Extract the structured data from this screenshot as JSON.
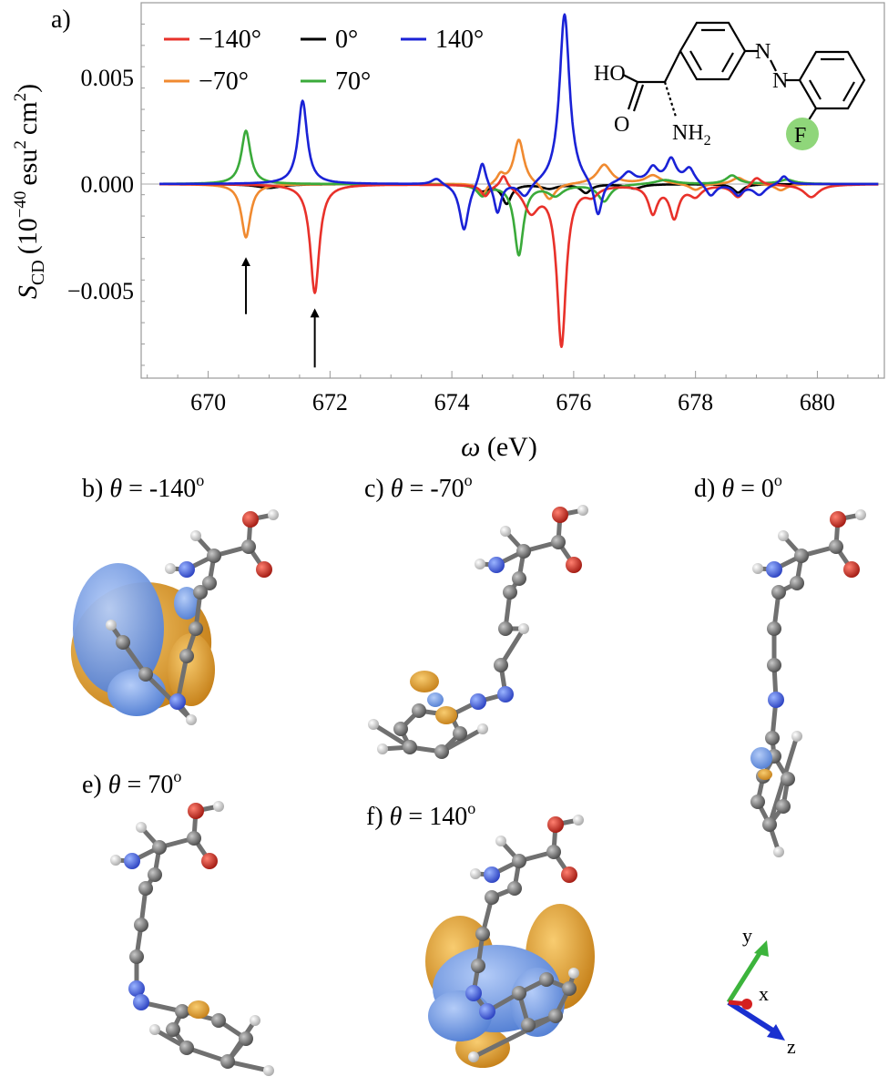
{
  "chart_data": {
    "type": "line",
    "panel_label": "a)",
    "xlabel": "ω (eV)",
    "ylabel_main": "S",
    "ylabel_sub": "CD",
    "ylabel_units": "(10",
    "ylabel_exp": "−40",
    "ylabel_units2": "esu",
    "ylabel_exp2": "2",
    "ylabel_units3": "cm",
    "ylabel_exp3": "2",
    "ylabel_close": ")",
    "xlim": [
      668.9,
      681.1
    ],
    "ylim": [
      -0.0091,
      0.0085
    ],
    "x_ticks": [
      670,
      672,
      674,
      676,
      678,
      680
    ],
    "x_tick_labels": [
      "670",
      "672",
      "674",
      "676",
      "678",
      "680"
    ],
    "y_ticks": [
      0.005,
      0.0,
      -0.005
    ],
    "y_tick_labels": [
      "0.005",
      "0.000",
      "−0.005"
    ],
    "legend_position": "top-left",
    "series": [
      {
        "name": "−140°",
        "color": "#e8312a",
        "peaks": [
          [
            671.75,
            -0.0051,
            0.09
          ],
          [
            674.55,
            -0.0005,
            0.08
          ],
          [
            674.85,
            0.0006,
            0.07
          ],
          [
            675.3,
            -0.0012,
            0.15
          ],
          [
            675.8,
            -0.0075,
            0.09
          ],
          [
            676.3,
            -0.0004,
            0.12
          ],
          [
            677.3,
            -0.0013,
            0.09
          ],
          [
            677.65,
            -0.0015,
            0.09
          ],
          [
            678.0,
            -0.0005,
            0.12
          ],
          [
            678.7,
            -0.0006,
            0.12
          ],
          [
            679.0,
            0.0004,
            0.1
          ],
          [
            679.9,
            -0.0006,
            0.15
          ]
        ]
      },
      {
        "name": "−70°",
        "color": "#f08a30",
        "peaks": [
          [
            670.62,
            -0.0025,
            0.09
          ],
          [
            674.5,
            -0.0006,
            0.08
          ],
          [
            674.8,
            0.0004,
            0.07
          ],
          [
            675.1,
            0.0021,
            0.1
          ],
          [
            675.6,
            -0.0008,
            0.12
          ],
          [
            676.5,
            0.0009,
            0.14
          ],
          [
            677.3,
            0.0004,
            0.15
          ],
          [
            678.0,
            -0.0003,
            0.12
          ],
          [
            678.7,
            0.0003,
            0.12
          ],
          [
            679.4,
            -0.0003,
            0.12
          ]
        ]
      },
      {
        "name": "0°",
        "color": "#000000",
        "peaks": [
          [
            671.0,
            -0.00018,
            0.25
          ],
          [
            674.5,
            -0.0003,
            0.12
          ],
          [
            674.9,
            -0.0009,
            0.09
          ],
          [
            675.6,
            -0.0002,
            0.15
          ],
          [
            676.2,
            -0.0004,
            0.1
          ],
          [
            677.0,
            -0.0002,
            0.15
          ],
          [
            678.7,
            -0.0004,
            0.1
          ]
        ]
      },
      {
        "name": "70°",
        "color": "#3aaa3a",
        "peaks": [
          [
            670.62,
            0.0025,
            0.09
          ],
          [
            674.5,
            -0.0005,
            0.1
          ],
          [
            675.1,
            -0.0033,
            0.09
          ],
          [
            675.7,
            -0.0005,
            0.15
          ],
          [
            676.5,
            -0.0008,
            0.12
          ],
          [
            677.5,
            0.0002,
            0.2
          ],
          [
            678.6,
            0.0004,
            0.12
          ],
          [
            679.5,
            0.0002,
            0.15
          ]
        ]
      },
      {
        "name": "140°",
        "color": "#1a22d6",
        "peaks": [
          [
            671.55,
            0.0039,
            0.09
          ],
          [
            673.75,
            0.0003,
            0.1
          ],
          [
            674.2,
            -0.0022,
            0.09
          ],
          [
            674.5,
            0.0012,
            0.07
          ],
          [
            674.75,
            -0.0014,
            0.07
          ],
          [
            675.2,
            -0.0007,
            0.12
          ],
          [
            675.85,
            0.008,
            0.1
          ],
          [
            676.4,
            -0.0017,
            0.08
          ],
          [
            676.9,
            0.0005,
            0.12
          ],
          [
            677.3,
            0.0007,
            0.1
          ],
          [
            677.6,
            0.0011,
            0.1
          ],
          [
            677.9,
            0.0007,
            0.1
          ],
          [
            678.25,
            -0.0006,
            0.1
          ],
          [
            678.7,
            -0.0005,
            0.1
          ],
          [
            679.05,
            -0.0005,
            0.12
          ],
          [
            679.45,
            0.0004,
            0.08
          ]
        ]
      }
    ],
    "arrows": [
      {
        "x": 670.62,
        "y_tail": -0.0061,
        "y_head": -0.0033
      },
      {
        "x": 671.75,
        "y_tail": -0.0086,
        "y_head": -0.0057
      }
    ]
  },
  "inset_molecule": {
    "atom_labels": [
      "HO",
      "O",
      "NH",
      "2",
      "N",
      "N",
      "F"
    ],
    "highlight_color": "#8fd67a"
  },
  "structure_panels": [
    {
      "letter": "b)",
      "theta": "θ",
      "eq": " = -140",
      "deg": "o"
    },
    {
      "letter": "c)",
      "theta": "θ",
      "eq": " = -70",
      "deg": "o"
    },
    {
      "letter": "d)",
      "theta": "θ",
      "eq": " = 0",
      "deg": "o"
    },
    {
      "letter": "e)",
      "theta": "θ",
      "eq": " = 70",
      "deg": "o"
    },
    {
      "letter": "f)",
      "theta": "θ",
      "eq": " = 140",
      "deg": "o"
    }
  ],
  "axes_triad": {
    "x_label": "x",
    "y_label": "y",
    "z_label": "z",
    "colors": {
      "x": "#d42020",
      "y": "#3cb43c",
      "z": "#1a30d0"
    }
  },
  "colors": {
    "carbon": "#6e6e6e",
    "hydrogen": "#f0f0f0",
    "oxygen": "#d42a20",
    "nitrogen": "#3a5ae0",
    "fluorine": "#c8e070",
    "lobe_orange": "#e8a030",
    "lobe_blue": "#6e9ee8"
  }
}
